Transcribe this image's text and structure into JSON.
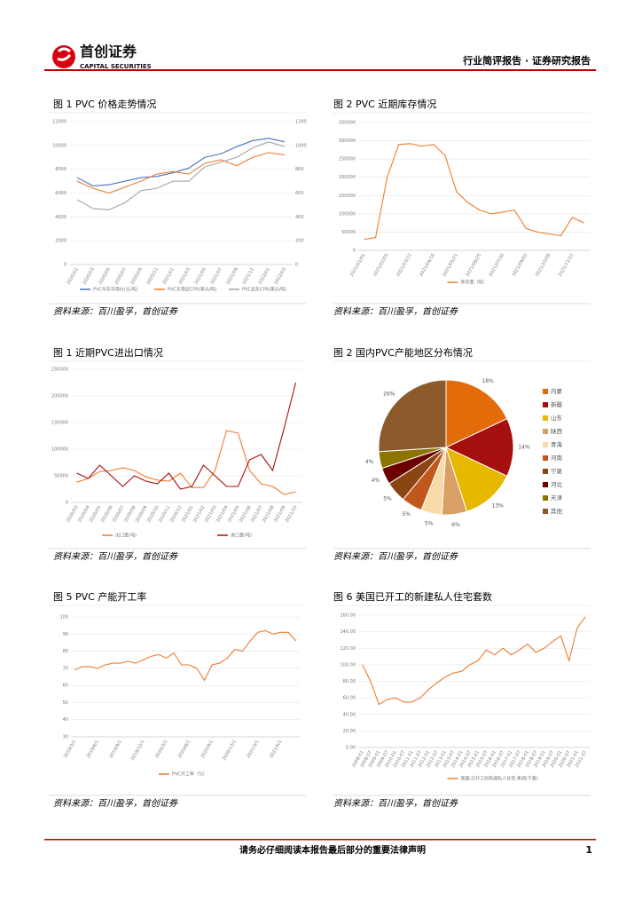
{
  "header": {
    "logo_name": "首创证券",
    "logo_en": "CAPITAL SECURITIES",
    "report_type": "行业简评报告 · 证券研究报告"
  },
  "figures": [
    {
      "title": "图 1 PVC 价格走势情况",
      "source": "资料来源：百川盈孚，首创证券",
      "chart": {
        "type": "line",
        "grid": true,
        "categories": [
          "2020/01",
          "2020/03",
          "2020/05",
          "2020/07",
          "2020/09",
          "2020/11",
          "2021/01",
          "2021/03",
          "2021/05",
          "2021/07",
          "2021/09",
          "2021/11",
          "2022/01",
          "2022/03"
        ],
        "ylim": [
          0,
          12000
        ],
        "yticks": [
          0,
          2000,
          4000,
          6000,
          8000,
          10000,
          12000
        ],
        "y2lim": [
          0,
          1200
        ],
        "y2ticks": [
          0,
          200,
          400,
          600,
          800,
          1000,
          1200
        ],
        "series": [
          {
            "name": "PVC华东市场价(元/吨)",
            "color": "#4472c4",
            "values": [
              7300,
              6600,
              6700,
              7000,
              7300,
              7400,
              7700,
              8100,
              9000,
              9300,
              9900,
              10400,
              10600,
              10300
            ]
          },
          {
            "name": "PVC东南亚CFR(美元/吨)",
            "color": "#ed7d31",
            "axis": "y2",
            "values": [
              700,
              640,
              600,
              650,
              700,
              760,
              780,
              760,
              850,
              880,
              830,
              900,
              940,
              920
            ]
          },
          {
            "name": "PVC远东CFR(美元/吨)",
            "color": "#a5a5a5",
            "axis": "y2",
            "values": [
              545,
              470,
              460,
              520,
              620,
              640,
              700,
              700,
              820,
              860,
              900,
              980,
              1030,
              990
            ]
          }
        ]
      }
    },
    {
      "title": "图 2 PVC 近期库存情况",
      "source": "资料来源：百川盈孚，首创证券",
      "chart": {
        "type": "line",
        "grid": true,
        "categories": [
          "2021/01/01",
          null,
          "2021/02/05",
          null,
          "2021/03/12",
          null,
          "2021/04/16",
          null,
          "2021/05/21",
          null,
          "2021/06/25",
          null,
          "2021/07/30",
          null,
          "2021/09/03",
          null,
          "2021/10/08",
          null,
          "2021/11/12",
          null
        ],
        "ylim": [
          0,
          350000
        ],
        "yticks": [
          0,
          50000,
          100000,
          150000,
          200000,
          250000,
          300000,
          350000
        ],
        "series": [
          {
            "name": "库存量（吨）",
            "color": "#ed7d31",
            "values": [
              30000,
              35000,
              200000,
              290000,
              292000,
              285000,
              290000,
              260000,
              160000,
              130000,
              110000,
              100000,
              105000,
              110000,
              60000,
              50000,
              45000,
              40000,
              90000,
              75000
            ]
          }
        ]
      }
    },
    {
      "title": "图 1 近期PVC进出口情况",
      "source": "资料来源：百川盈孚，首创证券",
      "chart": {
        "type": "line",
        "grid": true,
        "categories": [
          "2020/03",
          "2020/04",
          "2020/05",
          "2020/06",
          "2020/07",
          "2020/08",
          "2020/09",
          "2020/10",
          "2020/11",
          "2020/12",
          "2021/01",
          "2021/02",
          "2021/03",
          "2021/04",
          "2021/05",
          "2021/06",
          "2021/07",
          "2021/08",
          "2021/09",
          "2021/10"
        ],
        "ylim": [
          0,
          250000
        ],
        "yticks": [
          0,
          50000,
          100000,
          150000,
          200000,
          250000
        ],
        "series": [
          {
            "name": "出口量(吨)",
            "color": "#ed7d31",
            "values": [
              38000,
              45000,
              58000,
              60000,
              65000,
              60000,
              48000,
              42000,
              40000,
              55000,
              28000,
              28000,
              60000,
              135000,
              130000,
              60000,
              35000,
              30000,
              15000,
              20000
            ]
          },
          {
            "name": "进口量(吨)",
            "color": "#a50f0f",
            "values": [
              55000,
              45000,
              70000,
              50000,
              30000,
              50000,
              40000,
              35000,
              55000,
              25000,
              30000,
              70000,
              50000,
              30000,
              30000,
              80000,
              90000,
              60000,
              140000,
              225000
            ]
          }
        ]
      }
    },
    {
      "title": "图 2 国内PVC产能地区分布情况",
      "source": "资料来源：百川盈孚，首创证券",
      "chart": {
        "type": "pie",
        "categories": [
          "内蒙",
          "新疆",
          "山东",
          "陕西",
          "青海",
          "河南",
          "宁夏",
          "河北",
          "天津",
          "其他"
        ],
        "values": [
          18,
          14,
          13,
          6,
          5,
          5,
          5,
          4,
          4,
          26
        ],
        "value_labels": [
          "18%",
          "14%",
          "13%",
          "6%",
          "5%",
          "5%",
          "5%",
          "4%",
          "4%",
          "26%"
        ],
        "colors": [
          "#e36c0a",
          "#a50f0f",
          "#e6b800",
          "#d9a066",
          "#f8d9a8",
          "#c0581e",
          "#8b4513",
          "#6b0000",
          "#8b7500",
          "#8c5a2b"
        ]
      }
    },
    {
      "title": "图 5  PVC 产能开工率",
      "source": "资料来源：百川盈孚，首创证券",
      "chart": {
        "type": "line",
        "grid": true,
        "categories": [
          "2019/3/1",
          null,
          null,
          "2019/6/1",
          null,
          null,
          "2019/9/1",
          null,
          null,
          "2019/12/1",
          null,
          null,
          "2020/3/1",
          null,
          null,
          "2020/6/1",
          null,
          null,
          "2020/9/1",
          null,
          null,
          "2020/12/1",
          null,
          null,
          "2021/3/1",
          null,
          null,
          "2021/6/1",
          null,
          null
        ],
        "ylim": [
          30,
          100
        ],
        "yticks": [
          30,
          40,
          50,
          60,
          70,
          80,
          90,
          100
        ],
        "series": [
          {
            "name": "PVC开工率（%）",
            "color": "#ed7d31",
            "values": [
              69,
              71,
              71,
              70,
              72,
              73,
              73,
              74,
              73,
              75,
              77,
              78,
              76,
              79,
              72,
              72,
              70,
              63,
              72,
              73,
              76,
              81,
              80,
              86,
              91,
              92,
              90,
              91,
              91,
              86
            ]
          }
        ]
      }
    },
    {
      "title": "图 6 美国已开工的新建私人住宅套数",
      "source": "资料来源：百川盈孚，首创证券",
      "chart": {
        "type": "line",
        "grid": true,
        "categories": [
          "2008-01",
          "2008-07",
          "2009-01",
          "2009-07",
          "2010-01",
          "2010-07",
          "2011-01",
          "2011-07",
          "2012-01",
          "2012-07",
          "2013-01",
          "2013-07",
          "2014-01",
          "2014-07",
          "2015-01",
          "2015-07",
          "2016-01",
          "2016-07",
          "2017-01",
          "2017-07",
          "2018-01",
          "2018-07",
          "2019-01",
          "2019-07",
          "2020-01",
          "2020-07",
          "2021-01",
          "2021-07"
        ],
        "ylim": [
          0,
          160
        ],
        "yticks": [
          {
            "value": 0,
            "label": "0.00"
          },
          {
            "value": 20,
            "label": "20.00"
          },
          {
            "value": 40,
            "label": "40.00"
          },
          {
            "value": 60,
            "label": "60.00"
          },
          {
            "value": 80,
            "label": "80.00"
          },
          {
            "value": 100,
            "label": "100.00"
          },
          {
            "value": 120,
            "label": "120.00"
          },
          {
            "value": 140,
            "label": "140.00"
          },
          {
            "value": 160,
            "label": "160.00"
          }
        ],
        "series": [
          {
            "name": "美国:已开工的新建私人住宅:季调(千套)",
            "color": "#ed7d31",
            "values": [
              100,
              80,
              52,
              58,
              60,
              55,
              55,
              60,
              70,
              78,
              85,
              90,
              92,
              100,
              105,
              118,
              112,
              120,
              112,
              118,
              125,
              115,
              120,
              128,
              135,
              105,
              145,
              158
            ]
          }
        ]
      }
    }
  ],
  "footer": {
    "notice": "请务必仔细阅读本报告最后部分的重要法律声明",
    "page_number": 1
  }
}
